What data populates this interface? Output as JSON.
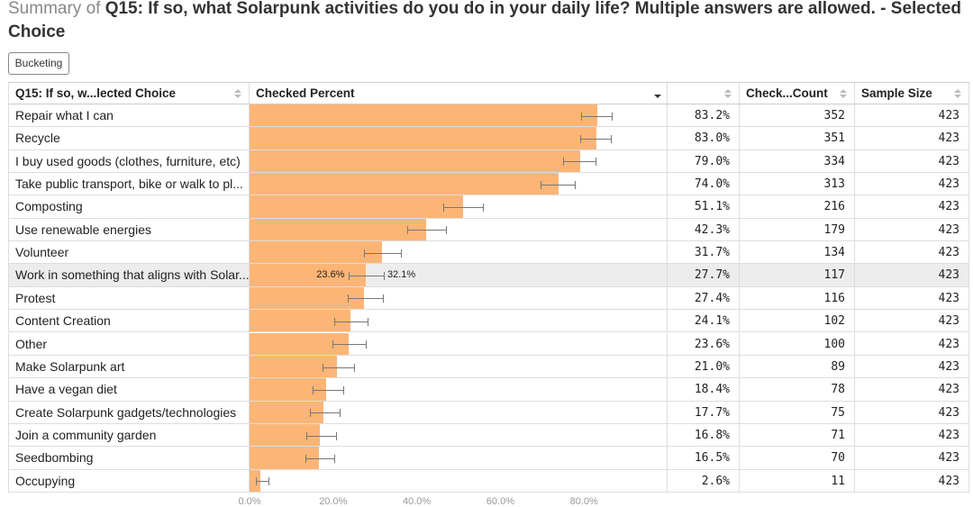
{
  "header": {
    "prefix": "Summary of",
    "title": "Q15: If so, what Solarpunk activities do you do in your daily life? Multiple answers are allowed. - Selected Choice"
  },
  "button": "Bucketing",
  "table": {
    "columns": {
      "choice": "Q15: If so, w...lected Choice",
      "percent": "Checked Percent",
      "count": "Check...Count",
      "sample": "Sample Size"
    },
    "bar_color": "#fdb576",
    "xlim": [
      0,
      100
    ],
    "xticks": [
      {
        "value": 0,
        "label": "0.0%"
      },
      {
        "value": 20,
        "label": "20.0%"
      },
      {
        "value": 40,
        "label": "40.0%"
      },
      {
        "value": 60,
        "label": "60.0%"
      },
      {
        "value": 80,
        "label": "80.0%"
      }
    ],
    "highlighted_row": 7,
    "rows": [
      {
        "label": "Repair what I can",
        "percent": 83.2,
        "percent_label": "83.2%",
        "ci_low": 79.4,
        "ci_high": 86.6,
        "count": 352,
        "sample": 423
      },
      {
        "label": "Recycle",
        "percent": 83.0,
        "percent_label": "83.0%",
        "ci_low": 79.2,
        "ci_high": 86.4,
        "count": 351,
        "sample": 423
      },
      {
        "label": "I buy used goods (clothes, furniture, etc)",
        "percent": 79.0,
        "percent_label": "79.0%",
        "ci_low": 75.1,
        "ci_high": 82.7,
        "count": 334,
        "sample": 423
      },
      {
        "label": "Take public transport, bike or walk to pl...",
        "percent": 74.0,
        "percent_label": "74.0%",
        "ci_low": 69.6,
        "ci_high": 77.9,
        "count": 313,
        "sample": 423
      },
      {
        "label": "Composting",
        "percent": 51.1,
        "percent_label": "51.1%",
        "ci_low": 46.3,
        "ci_high": 55.9,
        "count": 216,
        "sample": 423
      },
      {
        "label": "Use renewable energies",
        "percent": 42.3,
        "percent_label": "42.3%",
        "ci_low": 37.7,
        "ci_high": 47.0,
        "count": 179,
        "sample": 423
      },
      {
        "label": "Volunteer",
        "percent": 31.7,
        "percent_label": "31.7%",
        "ci_low": 27.4,
        "ci_high": 36.3,
        "count": 134,
        "sample": 423
      },
      {
        "label": "Work in something that aligns with Solar...",
        "percent": 27.7,
        "percent_label": "27.7%",
        "ci_low": 23.6,
        "ci_high": 32.1,
        "ci_labels": [
          "23.6%",
          "32.1%"
        ],
        "count": 117,
        "sample": 423
      },
      {
        "label": "Protest",
        "percent": 27.4,
        "percent_label": "27.4%",
        "ci_low": 23.4,
        "ci_high": 31.8,
        "count": 116,
        "sample": 423
      },
      {
        "label": "Content Creation",
        "percent": 24.1,
        "percent_label": "24.1%",
        "ci_low": 20.3,
        "ci_high": 28.3,
        "count": 102,
        "sample": 423
      },
      {
        "label": "Other",
        "percent": 23.6,
        "percent_label": "23.6%",
        "ci_low": 19.8,
        "ci_high": 27.8,
        "count": 100,
        "sample": 423
      },
      {
        "label": "Make Solarpunk art",
        "percent": 21.0,
        "percent_label": "21.0%",
        "ci_low": 17.4,
        "ci_high": 25.1,
        "count": 89,
        "sample": 423
      },
      {
        "label": "Have a vegan diet",
        "percent": 18.4,
        "percent_label": "18.4%",
        "ci_low": 15.0,
        "ci_high": 22.4,
        "count": 78,
        "sample": 423
      },
      {
        "label": "Create Solarpunk gadgets/technologies",
        "percent": 17.7,
        "percent_label": "17.7%",
        "ci_low": 14.4,
        "ci_high": 21.6,
        "count": 75,
        "sample": 423
      },
      {
        "label": "Join a community garden",
        "percent": 16.8,
        "percent_label": "16.8%",
        "ci_low": 13.5,
        "ci_high": 20.6,
        "count": 71,
        "sample": 423
      },
      {
        "label": "Seedbombing",
        "percent": 16.5,
        "percent_label": "16.5%",
        "ci_low": 13.3,
        "ci_high": 20.3,
        "count": 70,
        "sample": 423
      },
      {
        "label": "Occupying",
        "percent": 2.6,
        "percent_label": "2.6%",
        "ci_low": 1.5,
        "ci_high": 4.6,
        "count": 11,
        "sample": 423
      }
    ]
  }
}
